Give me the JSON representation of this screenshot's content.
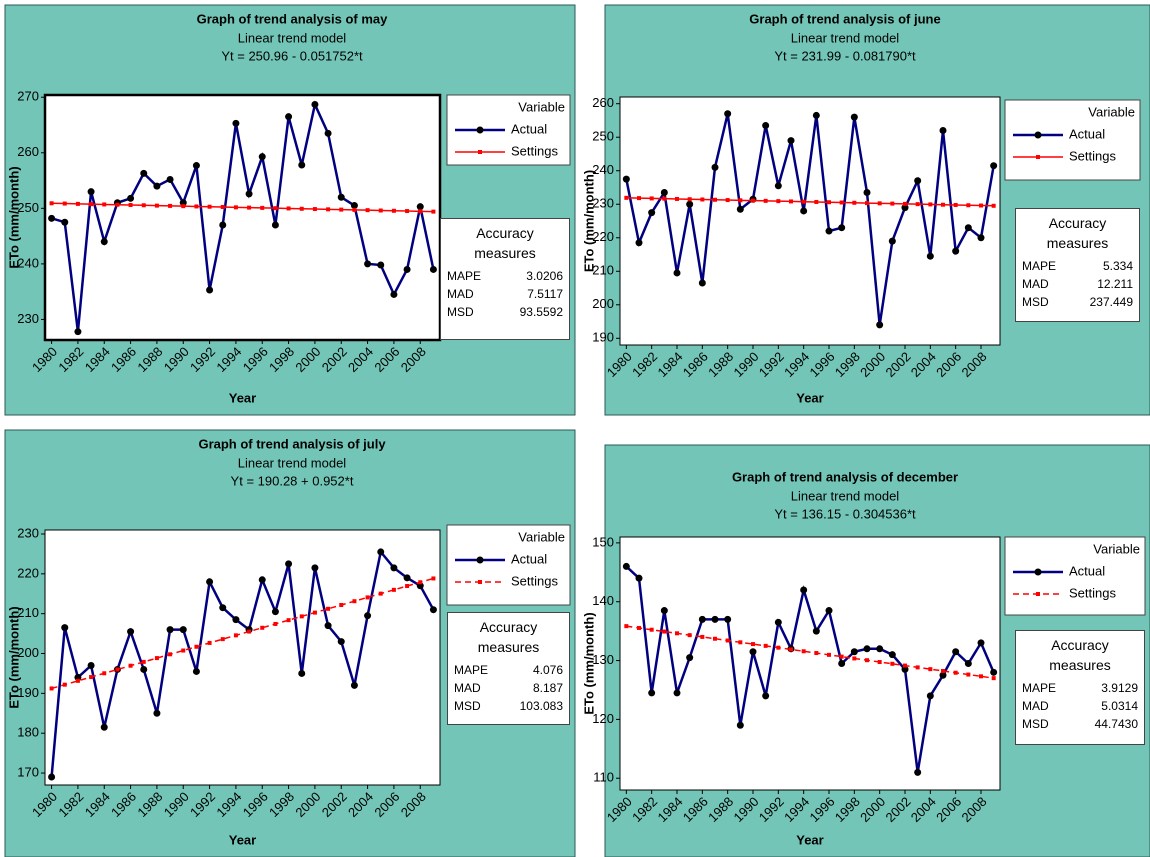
{
  "chart_data": [
    {
      "type": "line",
      "title": "Graph of trend analysis of may",
      "subtitle": "Linear trend model",
      "equation": "Yt = 250.96 - 0.051752*t",
      "ylabel": "ETo (mm/month)",
      "xlabel": "Year",
      "legend_title": "Variable",
      "x": [
        1980,
        1981,
        1982,
        1983,
        1984,
        1985,
        1986,
        1987,
        1988,
        1989,
        1990,
        1991,
        1992,
        1993,
        1994,
        1995,
        1996,
        1997,
        1998,
        1999,
        2000,
        2001,
        2002,
        2003,
        2004,
        2005,
        2006,
        2007,
        2008,
        2009
      ],
      "xlim": [
        1979.5,
        2009.5
      ],
      "xticks": [
        1980,
        1982,
        1984,
        1986,
        1988,
        1990,
        1992,
        1994,
        1996,
        1998,
        2000,
        2002,
        2004,
        2006,
        2008
      ],
      "ylim": [
        226.3,
        270.4
      ],
      "yticks": [
        230,
        240,
        250,
        260,
        270
      ],
      "series": [
        {
          "name": "Actual",
          "color": "#000080",
          "marker": "circle",
          "dash": false,
          "values": [
            248.2,
            247.5,
            227.8,
            253,
            244,
            251,
            251.8,
            256.3,
            254,
            255.2,
            251,
            257.7,
            235.3,
            247,
            265.3,
            252.6,
            259.3,
            247,
            266.5,
            257.8,
            268.7,
            263.5,
            252,
            250.5,
            240,
            239.8,
            234.5,
            239,
            250.3,
            239
          ]
        },
        {
          "name": "Settings",
          "color": "#ff0000",
          "marker": "square",
          "dash": false,
          "values": [
            250.91,
            250.86,
            250.8,
            250.75,
            250.7,
            250.65,
            250.6,
            250.55,
            250.49,
            250.44,
            250.39,
            250.34,
            250.29,
            250.24,
            250.18,
            250.13,
            250.08,
            250.03,
            249.98,
            249.92,
            249.87,
            249.82,
            249.77,
            249.72,
            249.67,
            249.61,
            249.56,
            249.51,
            249.46,
            249.41
          ]
        }
      ],
      "accuracy": {
        "title": "Accuracy measures",
        "measures": [
          {
            "name": "MAPE",
            "value": "3.0206"
          },
          {
            "name": "MAD",
            "value": "7.5117"
          },
          {
            "name": "MSD",
            "value": "93.5592"
          }
        ]
      }
    },
    {
      "type": "line",
      "title": "Graph of trend analysis of june",
      "subtitle": "Linear trend model",
      "equation": "Yt = 231.99 - 0.081790*t",
      "ylabel": "ETo (mm/month)",
      "xlabel": "Year",
      "legend_title": "Variable",
      "x": [
        1980,
        1981,
        1982,
        1983,
        1984,
        1985,
        1986,
        1987,
        1988,
        1989,
        1990,
        1991,
        1992,
        1993,
        1994,
        1995,
        1996,
        1997,
        1998,
        1999,
        2000,
        2001,
        2002,
        2003,
        2004,
        2005,
        2006,
        2007,
        2008,
        2009
      ],
      "xlim": [
        1979.5,
        2009.5
      ],
      "xticks": [
        1980,
        1982,
        1984,
        1986,
        1988,
        1990,
        1992,
        1994,
        1996,
        1998,
        2000,
        2002,
        2004,
        2006,
        2008
      ],
      "ylim": [
        188,
        262
      ],
      "yticks": [
        190,
        200,
        210,
        220,
        230,
        240,
        250,
        260
      ],
      "series": [
        {
          "name": "Actual",
          "color": "#000080",
          "marker": "circle",
          "dash": false,
          "values": [
            237.5,
            218.5,
            227.5,
            233.5,
            209.5,
            230,
            206.5,
            241,
            257,
            228.5,
            231.5,
            253.5,
            235.5,
            249,
            228,
            256.5,
            222,
            223,
            256,
            233.5,
            194,
            219,
            229,
            237,
            214.5,
            252,
            216,
            223,
            220,
            241.5
          ]
        },
        {
          "name": "Settings",
          "color": "#ff0000",
          "marker": "square",
          "dash": false,
          "values": [
            231.91,
            231.83,
            231.74,
            231.66,
            231.58,
            231.5,
            231.42,
            231.34,
            231.25,
            231.17,
            231.09,
            231.01,
            230.93,
            230.84,
            230.76,
            230.68,
            230.6,
            230.52,
            230.44,
            230.35,
            230.27,
            230.19,
            230.11,
            230.03,
            229.95,
            229.86,
            229.78,
            229.7,
            229.62,
            229.54
          ]
        }
      ],
      "accuracy": {
        "title": "Accuracy measures",
        "measures": [
          {
            "name": "MAPE",
            "value": "5.334"
          },
          {
            "name": "MAD",
            "value": "12.211"
          },
          {
            "name": "MSD",
            "value": "237.449"
          }
        ]
      }
    },
    {
      "type": "line",
      "title": "Graph of trend analysis of july",
      "subtitle": "Linear trend model",
      "equation": "Yt = 190.28 + 0.952*t",
      "ylabel": "ETo (mm/month)",
      "xlabel": "Year",
      "legend_title": "Variable",
      "x": [
        1980,
        1981,
        1982,
        1983,
        1984,
        1985,
        1986,
        1987,
        1988,
        1989,
        1990,
        1991,
        1992,
        1993,
        1994,
        1995,
        1996,
        1997,
        1998,
        1999,
        2000,
        2001,
        2002,
        2003,
        2004,
        2005,
        2006,
        2007,
        2008,
        2009
      ],
      "xlim": [
        1979.5,
        2009.5
      ],
      "xticks": [
        1980,
        1982,
        1984,
        1986,
        1988,
        1990,
        1992,
        1994,
        1996,
        1998,
        2000,
        2002,
        2004,
        2006,
        2008
      ],
      "ylim": [
        167,
        231
      ],
      "yticks": [
        170,
        180,
        190,
        200,
        210,
        220,
        230
      ],
      "series": [
        {
          "name": "Actual",
          "color": "#000080",
          "marker": "circle",
          "dash": false,
          "values": [
            169,
            206.5,
            194,
            197,
            181.5,
            196,
            205.5,
            196,
            185,
            206,
            206,
            195.5,
            218,
            211.5,
            208.5,
            206,
            218.5,
            210.5,
            222.5,
            195,
            221.5,
            207,
            203,
            192,
            209.5,
            225.5,
            221.5,
            219,
            217,
            211
          ]
        },
        {
          "name": "Settings",
          "color": "#ff0000",
          "marker": "square",
          "dash": true,
          "values": [
            191.23,
            192.18,
            193.14,
            194.09,
            195.04,
            195.99,
            196.94,
            197.9,
            198.85,
            199.8,
            200.75,
            201.7,
            202.66,
            203.61,
            204.56,
            205.51,
            206.46,
            207.42,
            208.37,
            209.32,
            210.27,
            211.22,
            212.18,
            213.13,
            214.08,
            215.03,
            215.98,
            216.94,
            217.89,
            218.84
          ]
        }
      ],
      "accuracy": {
        "title": "Accuracy measures",
        "measures": [
          {
            "name": "MAPE",
            "value": "4.076"
          },
          {
            "name": "MAD",
            "value": "8.187"
          },
          {
            "name": "MSD",
            "value": "103.083"
          }
        ]
      }
    },
    {
      "type": "line",
      "title": "Graph of trend analysis of december",
      "subtitle": "Linear trend model",
      "equation": "Yt = 136.15 - 0.304536*t",
      "ylabel": "ETo (mm/month)",
      "xlabel": "Year",
      "legend_title": "Variable",
      "x": [
        1980,
        1981,
        1982,
        1983,
        1984,
        1985,
        1986,
        1987,
        1988,
        1989,
        1990,
        1991,
        1992,
        1993,
        1994,
        1995,
        1996,
        1997,
        1998,
        1999,
        2000,
        2001,
        2002,
        2003,
        2004,
        2005,
        2006,
        2007,
        2008,
        2009
      ],
      "xlim": [
        1979.5,
        2009.5
      ],
      "xticks": [
        1980,
        1982,
        1984,
        1986,
        1988,
        1990,
        1992,
        1994,
        1996,
        1998,
        2000,
        2002,
        2004,
        2006,
        2008
      ],
      "ylim": [
        108,
        151
      ],
      "yticks": [
        110,
        120,
        130,
        140,
        150
      ],
      "series": [
        {
          "name": "Actual",
          "color": "#000080",
          "marker": "circle",
          "dash": false,
          "values": [
            146,
            144,
            124.5,
            138.5,
            124.5,
            130.5,
            137,
            137,
            137,
            119,
            131.5,
            124,
            136.5,
            132,
            142,
            135,
            138.5,
            129.5,
            131.5,
            132,
            132,
            131,
            128.5,
            111,
            124,
            127.5,
            131.5,
            129.5,
            133,
            128
          ]
        },
        {
          "name": "Settings",
          "color": "#ff0000",
          "marker": "square",
          "dash": true,
          "values": [
            135.85,
            135.54,
            135.24,
            134.93,
            134.63,
            134.32,
            134.02,
            133.71,
            133.41,
            133.1,
            132.8,
            132.5,
            132.19,
            131.89,
            131.58,
            131.28,
            130.97,
            130.67,
            130.36,
            130.06,
            129.75,
            129.45,
            129.15,
            128.84,
            128.54,
            128.23,
            127.93,
            127.62,
            127.32,
            127.01
          ]
        }
      ],
      "accuracy": {
        "title": "Accuracy measures",
        "measures": [
          {
            "name": "MAPE",
            "value": "3.9129"
          },
          {
            "name": "MAD",
            "value": "5.0314"
          },
          {
            "name": "MSD",
            "value": "44.7430"
          }
        ]
      }
    }
  ]
}
